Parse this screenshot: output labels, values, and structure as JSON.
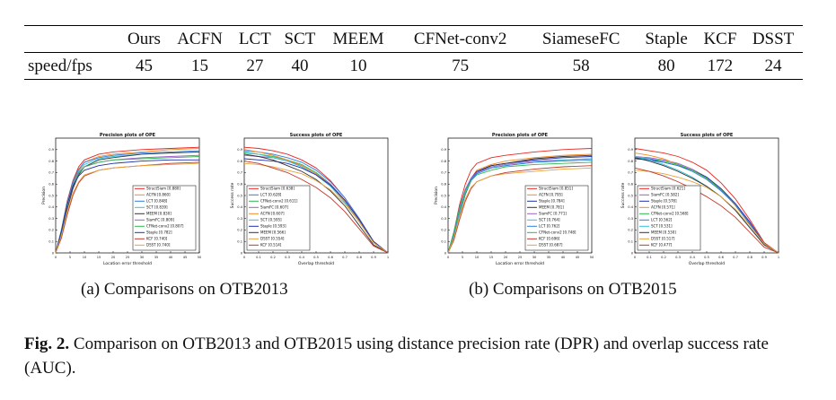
{
  "speed_table": {
    "row_label": "speed/fps",
    "headers": [
      "Ours",
      "ACFN",
      "LCT",
      "SCT",
      "MEEM",
      "CFNet-conv2",
      "SiameseFC",
      "Staple",
      "KCF",
      "DSST"
    ],
    "values": [
      "45",
      "15",
      "27",
      "40",
      "10",
      "75",
      "58",
      "80",
      "172",
      "24"
    ]
  },
  "subcaptions": {
    "a": "(a) Comparisons on OTB2013",
    "b": "(b) Comparisons on OTB2015"
  },
  "caption": {
    "label": "Fig. 2.",
    "text": " Comparison on OTB2013 and OTB2015 using distance precision rate (DPR) and overlap success rate (AUC)."
  },
  "colors": {
    "StructSiam": "#e8251f",
    "ACFN": "#f08a24",
    "LCT": "#2f7de0",
    "SCT": "#33c1d6",
    "MEEM": "#333333",
    "SiamFC": "#9b5fc9",
    "CFNet-conv2": "#2fb84a",
    "Staple": "#1f2fb0",
    "KCF": "#c0392b",
    "DSST": "#e8a23a"
  },
  "chart_data": [
    {
      "type": "line",
      "title": "Precision plots of OPE",
      "xlabel": "Location error threshold",
      "ylabel": "Precision",
      "xlim": [
        0,
        50
      ],
      "ylim": [
        0,
        1
      ],
      "x_ticks": [
        "0",
        "5",
        "10",
        "15",
        "20",
        "25",
        "30",
        "35",
        "40",
        "45",
        "50"
      ],
      "y_ticks": [
        "0",
        "0.1",
        "0.2",
        "0.3",
        "0.4",
        "0.5",
        "0.6",
        "0.7",
        "0.8",
        "0.9"
      ],
      "legend_position": "bottom-right",
      "x": [
        0,
        2,
        4,
        6,
        8,
        10,
        15,
        20,
        30,
        40,
        50
      ],
      "series": [
        {
          "name": "StructSiam [0.880]",
          "color": "StructSiam",
          "values": [
            0.0,
            0.2,
            0.45,
            0.63,
            0.75,
            0.81,
            0.86,
            0.88,
            0.9,
            0.91,
            0.92
          ]
        },
        {
          "name": "ACFN [0.860]",
          "color": "ACFN",
          "values": [
            0.0,
            0.18,
            0.42,
            0.6,
            0.72,
            0.79,
            0.84,
            0.86,
            0.88,
            0.9,
            0.91
          ]
        },
        {
          "name": "LCT [0.848]",
          "color": "LCT",
          "values": [
            0.0,
            0.19,
            0.44,
            0.62,
            0.73,
            0.79,
            0.83,
            0.85,
            0.87,
            0.88,
            0.89
          ]
        },
        {
          "name": "SCT [0.839]",
          "color": "SCT",
          "values": [
            0.0,
            0.17,
            0.41,
            0.59,
            0.71,
            0.77,
            0.82,
            0.84,
            0.86,
            0.87,
            0.88
          ]
        },
        {
          "name": "MEEM [0.830]",
          "color": "MEEM",
          "values": [
            0.0,
            0.15,
            0.38,
            0.56,
            0.68,
            0.75,
            0.81,
            0.83,
            0.86,
            0.87,
            0.88
          ]
        },
        {
          "name": "SiamFC [0.809]",
          "color": "SiamFC",
          "values": [
            0.0,
            0.2,
            0.44,
            0.6,
            0.7,
            0.75,
            0.79,
            0.81,
            0.83,
            0.84,
            0.85
          ]
        },
        {
          "name": "CFNet-conv2 [0.807]",
          "color": "CFNet-conv2",
          "values": [
            0.0,
            0.2,
            0.43,
            0.59,
            0.69,
            0.75,
            0.79,
            0.81,
            0.82,
            0.83,
            0.84
          ]
        },
        {
          "name": "Staple [0.782]",
          "color": "Staple",
          "values": [
            0.0,
            0.19,
            0.42,
            0.58,
            0.67,
            0.72,
            0.76,
            0.78,
            0.8,
            0.81,
            0.81
          ]
        },
        {
          "name": "KCF [0.740]",
          "color": "KCF",
          "values": [
            0.0,
            0.13,
            0.33,
            0.5,
            0.61,
            0.67,
            0.72,
            0.74,
            0.76,
            0.78,
            0.79
          ]
        },
        {
          "name": "DSST [0.740]",
          "color": "DSST",
          "values": [
            0.0,
            0.15,
            0.36,
            0.52,
            0.62,
            0.68,
            0.72,
            0.74,
            0.76,
            0.77,
            0.78
          ]
        }
      ]
    },
    {
      "type": "line",
      "title": "Success plots of OPE",
      "xlabel": "Overlap threshold",
      "ylabel": "Success rate",
      "xlim": [
        0,
        1
      ],
      "ylim": [
        0,
        1
      ],
      "x_ticks": [
        "0",
        "0.1",
        "0.2",
        "0.3",
        "0.4",
        "0.5",
        "0.6",
        "0.7",
        "0.8",
        "0.9",
        "1"
      ],
      "y_ticks": [
        "0",
        "0.1",
        "0.2",
        "0.3",
        "0.4",
        "0.5",
        "0.6",
        "0.7",
        "0.8",
        "0.9"
      ],
      "legend_position": "bottom-left",
      "x": [
        0,
        0.1,
        0.2,
        0.3,
        0.4,
        0.5,
        0.6,
        0.7,
        0.8,
        0.9,
        1.0
      ],
      "series": [
        {
          "name": "StructSiam [0.638]",
          "color": "StructSiam",
          "values": [
            0.92,
            0.91,
            0.89,
            0.86,
            0.81,
            0.74,
            0.63,
            0.48,
            0.3,
            0.1,
            0.0
          ]
        },
        {
          "name": "LCT [0.628]",
          "color": "LCT",
          "values": [
            0.89,
            0.88,
            0.86,
            0.83,
            0.79,
            0.72,
            0.62,
            0.48,
            0.3,
            0.1,
            0.0
          ]
        },
        {
          "name": "CFNet-conv2 [0.611]",
          "color": "CFNet-conv2",
          "values": [
            0.87,
            0.86,
            0.84,
            0.81,
            0.77,
            0.7,
            0.6,
            0.46,
            0.28,
            0.09,
            0.0
          ]
        },
        {
          "name": "SiamFC [0.607]",
          "color": "SiamFC",
          "values": [
            0.85,
            0.84,
            0.83,
            0.8,
            0.76,
            0.69,
            0.6,
            0.46,
            0.28,
            0.09,
            0.0
          ]
        },
        {
          "name": "ACFN [0.607]",
          "color": "ACFN",
          "values": [
            0.9,
            0.88,
            0.85,
            0.81,
            0.76,
            0.69,
            0.59,
            0.45,
            0.28,
            0.09,
            0.0
          ]
        },
        {
          "name": "SCT [0.595]",
          "color": "SCT",
          "values": [
            0.88,
            0.86,
            0.83,
            0.8,
            0.75,
            0.68,
            0.58,
            0.44,
            0.27,
            0.09,
            0.0
          ]
        },
        {
          "name": "Staple [0.593]",
          "color": "Staple",
          "values": [
            0.82,
            0.81,
            0.8,
            0.78,
            0.74,
            0.68,
            0.59,
            0.46,
            0.29,
            0.1,
            0.0
          ]
        },
        {
          "name": "MEEM [0.566]",
          "color": "MEEM",
          "values": [
            0.86,
            0.84,
            0.81,
            0.76,
            0.71,
            0.64,
            0.54,
            0.41,
            0.24,
            0.07,
            0.0
          ]
        },
        {
          "name": "DSST [0.554]",
          "color": "DSST",
          "values": [
            0.78,
            0.77,
            0.75,
            0.72,
            0.69,
            0.63,
            0.55,
            0.43,
            0.27,
            0.09,
            0.0
          ]
        },
        {
          "name": "KCF [0.514]",
          "color": "KCF",
          "values": [
            0.8,
            0.78,
            0.74,
            0.7,
            0.64,
            0.57,
            0.48,
            0.36,
            0.21,
            0.06,
            0.0
          ]
        }
      ]
    },
    {
      "type": "line",
      "title": "Precision plots of OPE",
      "xlabel": "Location error threshold",
      "ylabel": "Precision",
      "xlim": [
        0,
        50
      ],
      "ylim": [
        0,
        1
      ],
      "x_ticks": [
        "0",
        "5",
        "10",
        "15",
        "20",
        "25",
        "30",
        "35",
        "40",
        "45",
        "50"
      ],
      "y_ticks": [
        "0",
        "0.1",
        "0.2",
        "0.3",
        "0.4",
        "0.5",
        "0.6",
        "0.7",
        "0.8",
        "0.9"
      ],
      "legend_position": "bottom-right",
      "x": [
        0,
        2,
        4,
        6,
        8,
        10,
        15,
        20,
        30,
        40,
        50
      ],
      "series": [
        {
          "name": "StructSiam [0.851]",
          "color": "StructSiam",
          "values": [
            0.0,
            0.18,
            0.42,
            0.6,
            0.72,
            0.78,
            0.83,
            0.85,
            0.88,
            0.9,
            0.91
          ]
        },
        {
          "name": "ACFN [0.795]",
          "color": "ACFN",
          "values": [
            0.0,
            0.15,
            0.37,
            0.54,
            0.65,
            0.72,
            0.77,
            0.8,
            0.83,
            0.85,
            0.86
          ]
        },
        {
          "name": "Staple [0.784]",
          "color": "Staple",
          "values": [
            0.0,
            0.17,
            0.39,
            0.55,
            0.65,
            0.71,
            0.76,
            0.78,
            0.81,
            0.83,
            0.84
          ]
        },
        {
          "name": "MEEM [0.781]",
          "color": "MEEM",
          "values": [
            0.0,
            0.13,
            0.34,
            0.51,
            0.63,
            0.7,
            0.76,
            0.78,
            0.82,
            0.84,
            0.85
          ]
        },
        {
          "name": "SiamFC [0.771]",
          "color": "SiamFC",
          "values": [
            0.0,
            0.18,
            0.4,
            0.55,
            0.65,
            0.7,
            0.75,
            0.77,
            0.8,
            0.81,
            0.82
          ]
        },
        {
          "name": "SCT [0.764]",
          "color": "SCT",
          "values": [
            0.0,
            0.14,
            0.35,
            0.52,
            0.63,
            0.69,
            0.74,
            0.76,
            0.79,
            0.81,
            0.82
          ]
        },
        {
          "name": "LCT [0.762]",
          "color": "LCT",
          "values": [
            0.0,
            0.16,
            0.38,
            0.54,
            0.64,
            0.69,
            0.74,
            0.76,
            0.79,
            0.8,
            0.81
          ]
        },
        {
          "name": "CFNet-conv2 [0.748]",
          "color": "CFNet-conv2",
          "values": [
            0.0,
            0.18,
            0.39,
            0.54,
            0.63,
            0.68,
            0.72,
            0.75,
            0.77,
            0.78,
            0.79
          ]
        },
        {
          "name": "KCF [0.696]",
          "color": "KCF",
          "values": [
            0.0,
            0.11,
            0.29,
            0.45,
            0.56,
            0.62,
            0.67,
            0.7,
            0.73,
            0.75,
            0.76
          ]
        },
        {
          "name": "DSST [0.687]",
          "color": "DSST",
          "values": [
            0.0,
            0.13,
            0.32,
            0.47,
            0.57,
            0.62,
            0.67,
            0.69,
            0.71,
            0.73,
            0.74
          ]
        }
      ]
    },
    {
      "type": "line",
      "title": "Success plots of OPE",
      "xlabel": "Overlap threshold",
      "ylabel": "Success rate",
      "xlim": [
        0,
        1
      ],
      "ylim": [
        0,
        1
      ],
      "x_ticks": [
        "0",
        "0.1",
        "0.2",
        "0.3",
        "0.4",
        "0.5",
        "0.6",
        "0.7",
        "0.8",
        "0.9",
        "1"
      ],
      "y_ticks": [
        "0",
        "0.1",
        "0.2",
        "0.3",
        "0.4",
        "0.5",
        "0.6",
        "0.7",
        "0.8",
        "0.9"
      ],
      "legend_position": "bottom-left",
      "x": [
        0,
        0.1,
        0.2,
        0.3,
        0.4,
        0.5,
        0.6,
        0.7,
        0.8,
        0.9,
        1.0
      ],
      "series": [
        {
          "name": "StructSiam [0.621]",
          "color": "StructSiam",
          "values": [
            0.91,
            0.89,
            0.87,
            0.84,
            0.79,
            0.72,
            0.61,
            0.47,
            0.29,
            0.09,
            0.0
          ]
        },
        {
          "name": "SiamFC [0.582]",
          "color": "SiamFC",
          "values": [
            0.84,
            0.83,
            0.81,
            0.78,
            0.73,
            0.66,
            0.56,
            0.43,
            0.26,
            0.08,
            0.0
          ]
        },
        {
          "name": "Staple [0.578]",
          "color": "Staple",
          "values": [
            0.82,
            0.81,
            0.79,
            0.76,
            0.72,
            0.66,
            0.56,
            0.43,
            0.27,
            0.08,
            0.0
          ]
        },
        {
          "name": "ACFN [0.571]",
          "color": "ACFN",
          "values": [
            0.87,
            0.85,
            0.82,
            0.77,
            0.72,
            0.65,
            0.55,
            0.41,
            0.25,
            0.08,
            0.0
          ]
        },
        {
          "name": "CFNet-conv2 [0.568]",
          "color": "CFNet-conv2",
          "values": [
            0.83,
            0.82,
            0.8,
            0.77,
            0.72,
            0.65,
            0.55,
            0.42,
            0.25,
            0.08,
            0.0
          ]
        },
        {
          "name": "LCT [0.562]",
          "color": "LCT",
          "values": [
            0.83,
            0.82,
            0.79,
            0.76,
            0.71,
            0.64,
            0.54,
            0.42,
            0.25,
            0.08,
            0.0
          ]
        },
        {
          "name": "SCT [0.531]",
          "color": "SCT",
          "values": [
            0.84,
            0.81,
            0.77,
            0.72,
            0.66,
            0.58,
            0.49,
            0.37,
            0.22,
            0.07,
            0.0
          ]
        },
        {
          "name": "MEEM [0.530]",
          "color": "MEEM",
          "values": [
            0.83,
            0.8,
            0.76,
            0.71,
            0.65,
            0.58,
            0.49,
            0.37,
            0.22,
            0.07,
            0.0
          ]
        },
        {
          "name": "DSST [0.517]",
          "color": "DSST",
          "values": [
            0.72,
            0.71,
            0.69,
            0.66,
            0.62,
            0.57,
            0.49,
            0.38,
            0.24,
            0.08,
            0.0
          ]
        },
        {
          "name": "KCF [0.477]",
          "color": "KCF",
          "values": [
            0.74,
            0.71,
            0.67,
            0.62,
            0.56,
            0.49,
            0.41,
            0.31,
            0.18,
            0.05,
            0.0
          ]
        }
      ]
    }
  ]
}
